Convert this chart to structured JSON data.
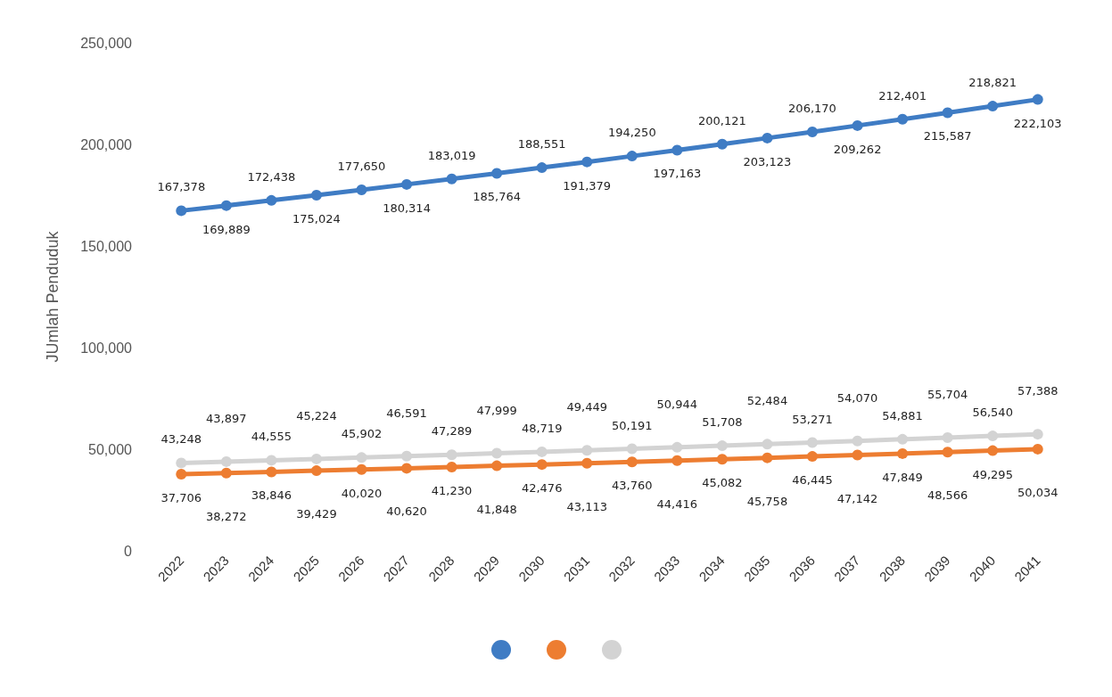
{
  "chart_data": {
    "type": "line",
    "ylabel": "JUmlah Penduduk",
    "categories": [
      "2022",
      "2023",
      "2024",
      "2025",
      "2026",
      "2027",
      "2028",
      "2029",
      "2030",
      "2031",
      "2032",
      "2033",
      "2034",
      "2035",
      "2036",
      "2037",
      "2038",
      "2039",
      "2040",
      "2041"
    ],
    "series": [
      {
        "color": "#3f7cc4",
        "values": [
          167378,
          169889,
          172438,
          175024,
          177650,
          180314,
          183019,
          185764,
          188551,
          191379,
          194250,
          197163,
          200121,
          203123,
          206170,
          209262,
          212401,
          215587,
          218821,
          222103
        ],
        "value_labels": [
          "167,378",
          "169,889",
          "172,438",
          "175,024",
          "177,650",
          "180,314",
          "183,019",
          "185,764",
          "188,551",
          "191,379",
          "194,250",
          "197,163",
          "200,121",
          "203,123",
          "206,170",
          "209,262",
          "212,401",
          "215,587",
          "218,821",
          "222,103"
        ]
      },
      {
        "color": "#ed7d31",
        "values": [
          37706,
          38272,
          38846,
          39429,
          40020,
          40620,
          41230,
          41848,
          42476,
          43113,
          43760,
          44416,
          45082,
          45758,
          46445,
          47142,
          47849,
          48566,
          49295,
          50034
        ],
        "value_labels": [
          "37,706",
          "38,272",
          "38,846",
          "39,429",
          "40,020",
          "40,620",
          "41,230",
          "41,848",
          "42,476",
          "43,113",
          "43,760",
          "44,416",
          "45,082",
          "45,758",
          "46,445",
          "47,142",
          "47,849",
          "48,566",
          "49,295",
          "50,034"
        ]
      },
      {
        "color": "#d3d3d3",
        "values": [
          43248,
          43897,
          44555,
          45224,
          45902,
          46591,
          47289,
          47999,
          48719,
          49449,
          50191,
          50944,
          51708,
          52484,
          53271,
          54070,
          54881,
          55704,
          56540,
          57388
        ],
        "value_labels": [
          "43,248",
          "43,897",
          "44,555",
          "45,224",
          "45,902",
          "46,591",
          "47,289",
          "47,999",
          "48,719",
          "49,449",
          "50,191",
          "50,944",
          "51,708",
          "52,484",
          "53,271",
          "54,070",
          "54,881",
          "55,704",
          "56,540",
          "57,388"
        ]
      }
    ],
    "ylim": [
      0,
      250000
    ],
    "yticks": [
      0,
      {
        "value": 50000,
        "label": "50,000"
      },
      {
        "value": 100000,
        "label": "100,000"
      },
      {
        "value": 150000,
        "label": "150,000"
      },
      {
        "value": 200000,
        "label": "200,000"
      },
      {
        "value": 250000,
        "label": "250,000"
      }
    ],
    "marker": "circle",
    "line_style": "solid",
    "grid": false
  }
}
